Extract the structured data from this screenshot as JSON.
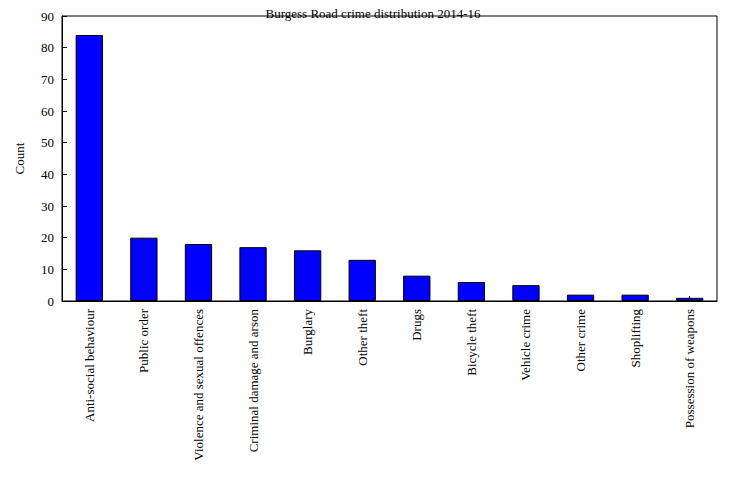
{
  "chart_data": {
    "type": "bar",
    "title": "Burgess Road crime distribution 2014-16",
    "y_label": "Count",
    "categories": [
      "Anti-social behaviour",
      "Public order",
      "Violence and sexual offences",
      "Criminal damage and arson",
      "Burglary",
      "Other theft",
      "Drugs",
      "Bicycle theft",
      "Vehicle crime",
      "Other crime",
      "Shoplifting",
      "Possession of weapons"
    ],
    "values": [
      84,
      20,
      18,
      17,
      16,
      13,
      8,
      6,
      5,
      2,
      2,
      1
    ],
    "color": "#0000ff",
    "ylim": [
      0,
      90
    ],
    "yticks": [
      0,
      10,
      20,
      30,
      40,
      50,
      60,
      70,
      80,
      90
    ],
    "grid": false
  }
}
